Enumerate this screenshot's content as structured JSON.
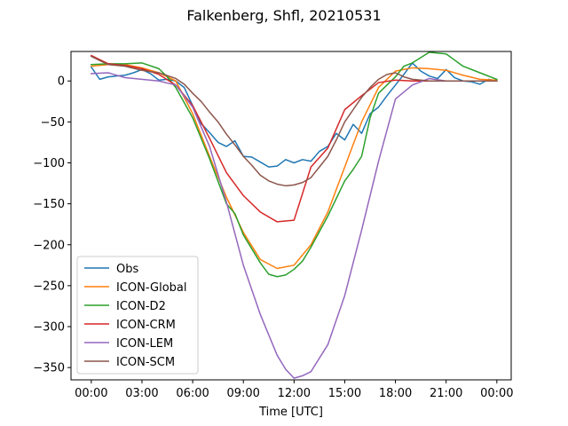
{
  "chart_data": {
    "type": "line",
    "title": "Falkenberg, Shfl, 20210531",
    "xlabel": "Time [UTC]",
    "ylabel": "",
    "xlim": [
      -1.2,
      24.85
    ],
    "ylim": [
      -365,
      36
    ],
    "x_ticks": [
      {
        "value": 0,
        "label": "00:00"
      },
      {
        "value": 3,
        "label": "03:00"
      },
      {
        "value": 6,
        "label": "06:00"
      },
      {
        "value": 9,
        "label": "09:00"
      },
      {
        "value": 12,
        "label": "12:00"
      },
      {
        "value": 15,
        "label": "15:00"
      },
      {
        "value": 18,
        "label": "18:00"
      },
      {
        "value": 21,
        "label": "21:00"
      },
      {
        "value": 24,
        "label": "00:00"
      }
    ],
    "y_ticks": [
      0,
      -50,
      -100,
      -150,
      -200,
      -250,
      -300,
      -350
    ],
    "y_tick_labels": [
      "0",
      "−50",
      "−100",
      "−150",
      "−200",
      "−250",
      "−300",
      "−350"
    ],
    "grid": false,
    "legend_position": "lower-left",
    "series": [
      {
        "name": "Obs",
        "color": "#1f77b4",
        "points": [
          [
            0,
            17
          ],
          [
            0.5,
            2
          ],
          [
            1,
            5
          ],
          [
            1.5,
            6
          ],
          [
            2,
            7
          ],
          [
            2.5,
            10
          ],
          [
            3,
            14
          ],
          [
            3.5,
            9
          ],
          [
            4,
            1
          ],
          [
            4.5,
            2
          ],
          [
            5,
            0
          ],
          [
            5.5,
            -8
          ],
          [
            6,
            -30
          ],
          [
            6.5,
            -52
          ],
          [
            7,
            -63
          ],
          [
            7.5,
            -75
          ],
          [
            8,
            -80
          ],
          [
            8.5,
            -73
          ],
          [
            9,
            -92
          ],
          [
            9.5,
            -93
          ],
          [
            10,
            -99
          ],
          [
            10.5,
            -105
          ],
          [
            11,
            -104
          ],
          [
            11.5,
            -96
          ],
          [
            12,
            -100
          ],
          [
            12.5,
            -96
          ],
          [
            13,
            -98
          ],
          [
            13.5,
            -86
          ],
          [
            14,
            -80
          ],
          [
            14.5,
            -64
          ],
          [
            15,
            -72
          ],
          [
            15.5,
            -53
          ],
          [
            16,
            -64
          ],
          [
            16.5,
            -40
          ],
          [
            17,
            -32
          ],
          [
            17.5,
            -18
          ],
          [
            18,
            -5
          ],
          [
            18.5,
            8
          ],
          [
            19,
            22
          ],
          [
            19.5,
            12
          ],
          [
            20,
            6
          ],
          [
            20.5,
            3
          ],
          [
            21,
            14
          ],
          [
            21.5,
            4
          ],
          [
            22,
            0
          ],
          [
            22.5,
            -1
          ],
          [
            23,
            -4
          ],
          [
            23.5,
            2
          ],
          [
            24,
            0
          ]
        ]
      },
      {
        "name": "ICON-Global",
        "color": "#ff7f0e",
        "points": [
          [
            0,
            18
          ],
          [
            1,
            20
          ],
          [
            2,
            20
          ],
          [
            3,
            16
          ],
          [
            4,
            10
          ],
          [
            5,
            0
          ],
          [
            6,
            -40
          ],
          [
            7,
            -92
          ],
          [
            8,
            -142
          ],
          [
            9,
            -185
          ],
          [
            10,
            -218
          ],
          [
            11,
            -229
          ],
          [
            12,
            -225
          ],
          [
            13,
            -200
          ],
          [
            14,
            -160
          ],
          [
            15,
            -105
          ],
          [
            16,
            -50
          ],
          [
            17,
            -8
          ],
          [
            18,
            12
          ],
          [
            19,
            16
          ],
          [
            20,
            15
          ],
          [
            21,
            13
          ],
          [
            22,
            7
          ],
          [
            23,
            2
          ],
          [
            24,
            1
          ]
        ]
      },
      {
        "name": "ICON-D2",
        "color": "#2ca02c",
        "points": [
          [
            0,
            20
          ],
          [
            1,
            21
          ],
          [
            2,
            21
          ],
          [
            3,
            22
          ],
          [
            4,
            15
          ],
          [
            4.5,
            5
          ],
          [
            5,
            -8
          ],
          [
            6,
            -45
          ],
          [
            7,
            -95
          ],
          [
            8,
            -150
          ],
          [
            8.5,
            -162
          ],
          [
            9,
            -188
          ],
          [
            10,
            -222
          ],
          [
            10.5,
            -236
          ],
          [
            11,
            -239
          ],
          [
            11.5,
            -237
          ],
          [
            12,
            -230
          ],
          [
            12.5,
            -220
          ],
          [
            13,
            -203
          ],
          [
            14,
            -165
          ],
          [
            15,
            -122
          ],
          [
            15.5,
            -108
          ],
          [
            16,
            -92
          ],
          [
            16.5,
            -45
          ],
          [
            17,
            -15
          ],
          [
            18,
            5
          ],
          [
            18.5,
            18
          ],
          [
            19,
            22
          ],
          [
            20,
            35
          ],
          [
            21,
            33
          ],
          [
            22,
            18
          ],
          [
            23,
            10
          ],
          [
            24,
            2
          ]
        ]
      },
      {
        "name": "ICON-CRM",
        "color": "#d62728",
        "points": [
          [
            0,
            31
          ],
          [
            1,
            21
          ],
          [
            2,
            19
          ],
          [
            3,
            15
          ],
          [
            4,
            8
          ],
          [
            5,
            -5
          ],
          [
            6,
            -30
          ],
          [
            7,
            -70
          ],
          [
            8,
            -112
          ],
          [
            9,
            -140
          ],
          [
            10,
            -160
          ],
          [
            11,
            -172
          ],
          [
            12,
            -170
          ],
          [
            13,
            -105
          ],
          [
            14,
            -82
          ],
          [
            15,
            -35
          ],
          [
            16,
            -18
          ],
          [
            17,
            -2
          ],
          [
            18,
            1
          ],
          [
            19,
            0
          ],
          [
            20,
            0
          ],
          [
            21,
            0
          ],
          [
            22,
            0
          ],
          [
            23,
            0
          ],
          [
            24,
            0
          ]
        ]
      },
      {
        "name": "ICON-LEM",
        "color": "#9467bd",
        "points": [
          [
            0,
            9
          ],
          [
            1,
            10
          ],
          [
            2,
            4
          ],
          [
            3,
            2
          ],
          [
            4,
            0
          ],
          [
            5,
            -5
          ],
          [
            6,
            -32
          ],
          [
            7,
            -80
          ],
          [
            8,
            -148
          ],
          [
            9,
            -225
          ],
          [
            10,
            -285
          ],
          [
            11,
            -335
          ],
          [
            11.5,
            -352
          ],
          [
            12,
            -363
          ],
          [
            12.5,
            -360
          ],
          [
            13,
            -355
          ],
          [
            14,
            -322
          ],
          [
            15,
            -262
          ],
          [
            16,
            -182
          ],
          [
            17,
            -98
          ],
          [
            18,
            -22
          ],
          [
            19,
            -5
          ],
          [
            20,
            3
          ],
          [
            21,
            0
          ],
          [
            22,
            0
          ],
          [
            23,
            0
          ],
          [
            24,
            0
          ]
        ]
      },
      {
        "name": "ICON-SCM",
        "color": "#8c564b",
        "points": [
          [
            0,
            30
          ],
          [
            0.5,
            25
          ],
          [
            1,
            20
          ],
          [
            2,
            18
          ],
          [
            3,
            13
          ],
          [
            4,
            10
          ],
          [
            5,
            3
          ],
          [
            5.5,
            -4
          ],
          [
            6,
            -15
          ],
          [
            6.5,
            -25
          ],
          [
            7,
            -38
          ],
          [
            7.5,
            -50
          ],
          [
            8,
            -65
          ],
          [
            8.5,
            -78
          ],
          [
            9,
            -92
          ],
          [
            9.5,
            -103
          ],
          [
            10,
            -115
          ],
          [
            10.5,
            -122
          ],
          [
            11,
            -126
          ],
          [
            11.5,
            -128
          ],
          [
            12,
            -127
          ],
          [
            12.5,
            -124
          ],
          [
            13,
            -118
          ],
          [
            13.5,
            -105
          ],
          [
            14,
            -92
          ],
          [
            14.5,
            -72
          ],
          [
            15,
            -50
          ],
          [
            15.5,
            -35
          ],
          [
            16,
            -20
          ],
          [
            16.5,
            -8
          ],
          [
            17,
            2
          ],
          [
            17.5,
            8
          ],
          [
            18,
            10
          ],
          [
            18.5,
            5
          ],
          [
            19,
            2
          ],
          [
            19.5,
            1
          ],
          [
            20,
            0
          ],
          [
            21,
            0
          ],
          [
            22,
            0
          ],
          [
            23,
            0
          ],
          [
            24,
            0
          ]
        ]
      }
    ]
  }
}
